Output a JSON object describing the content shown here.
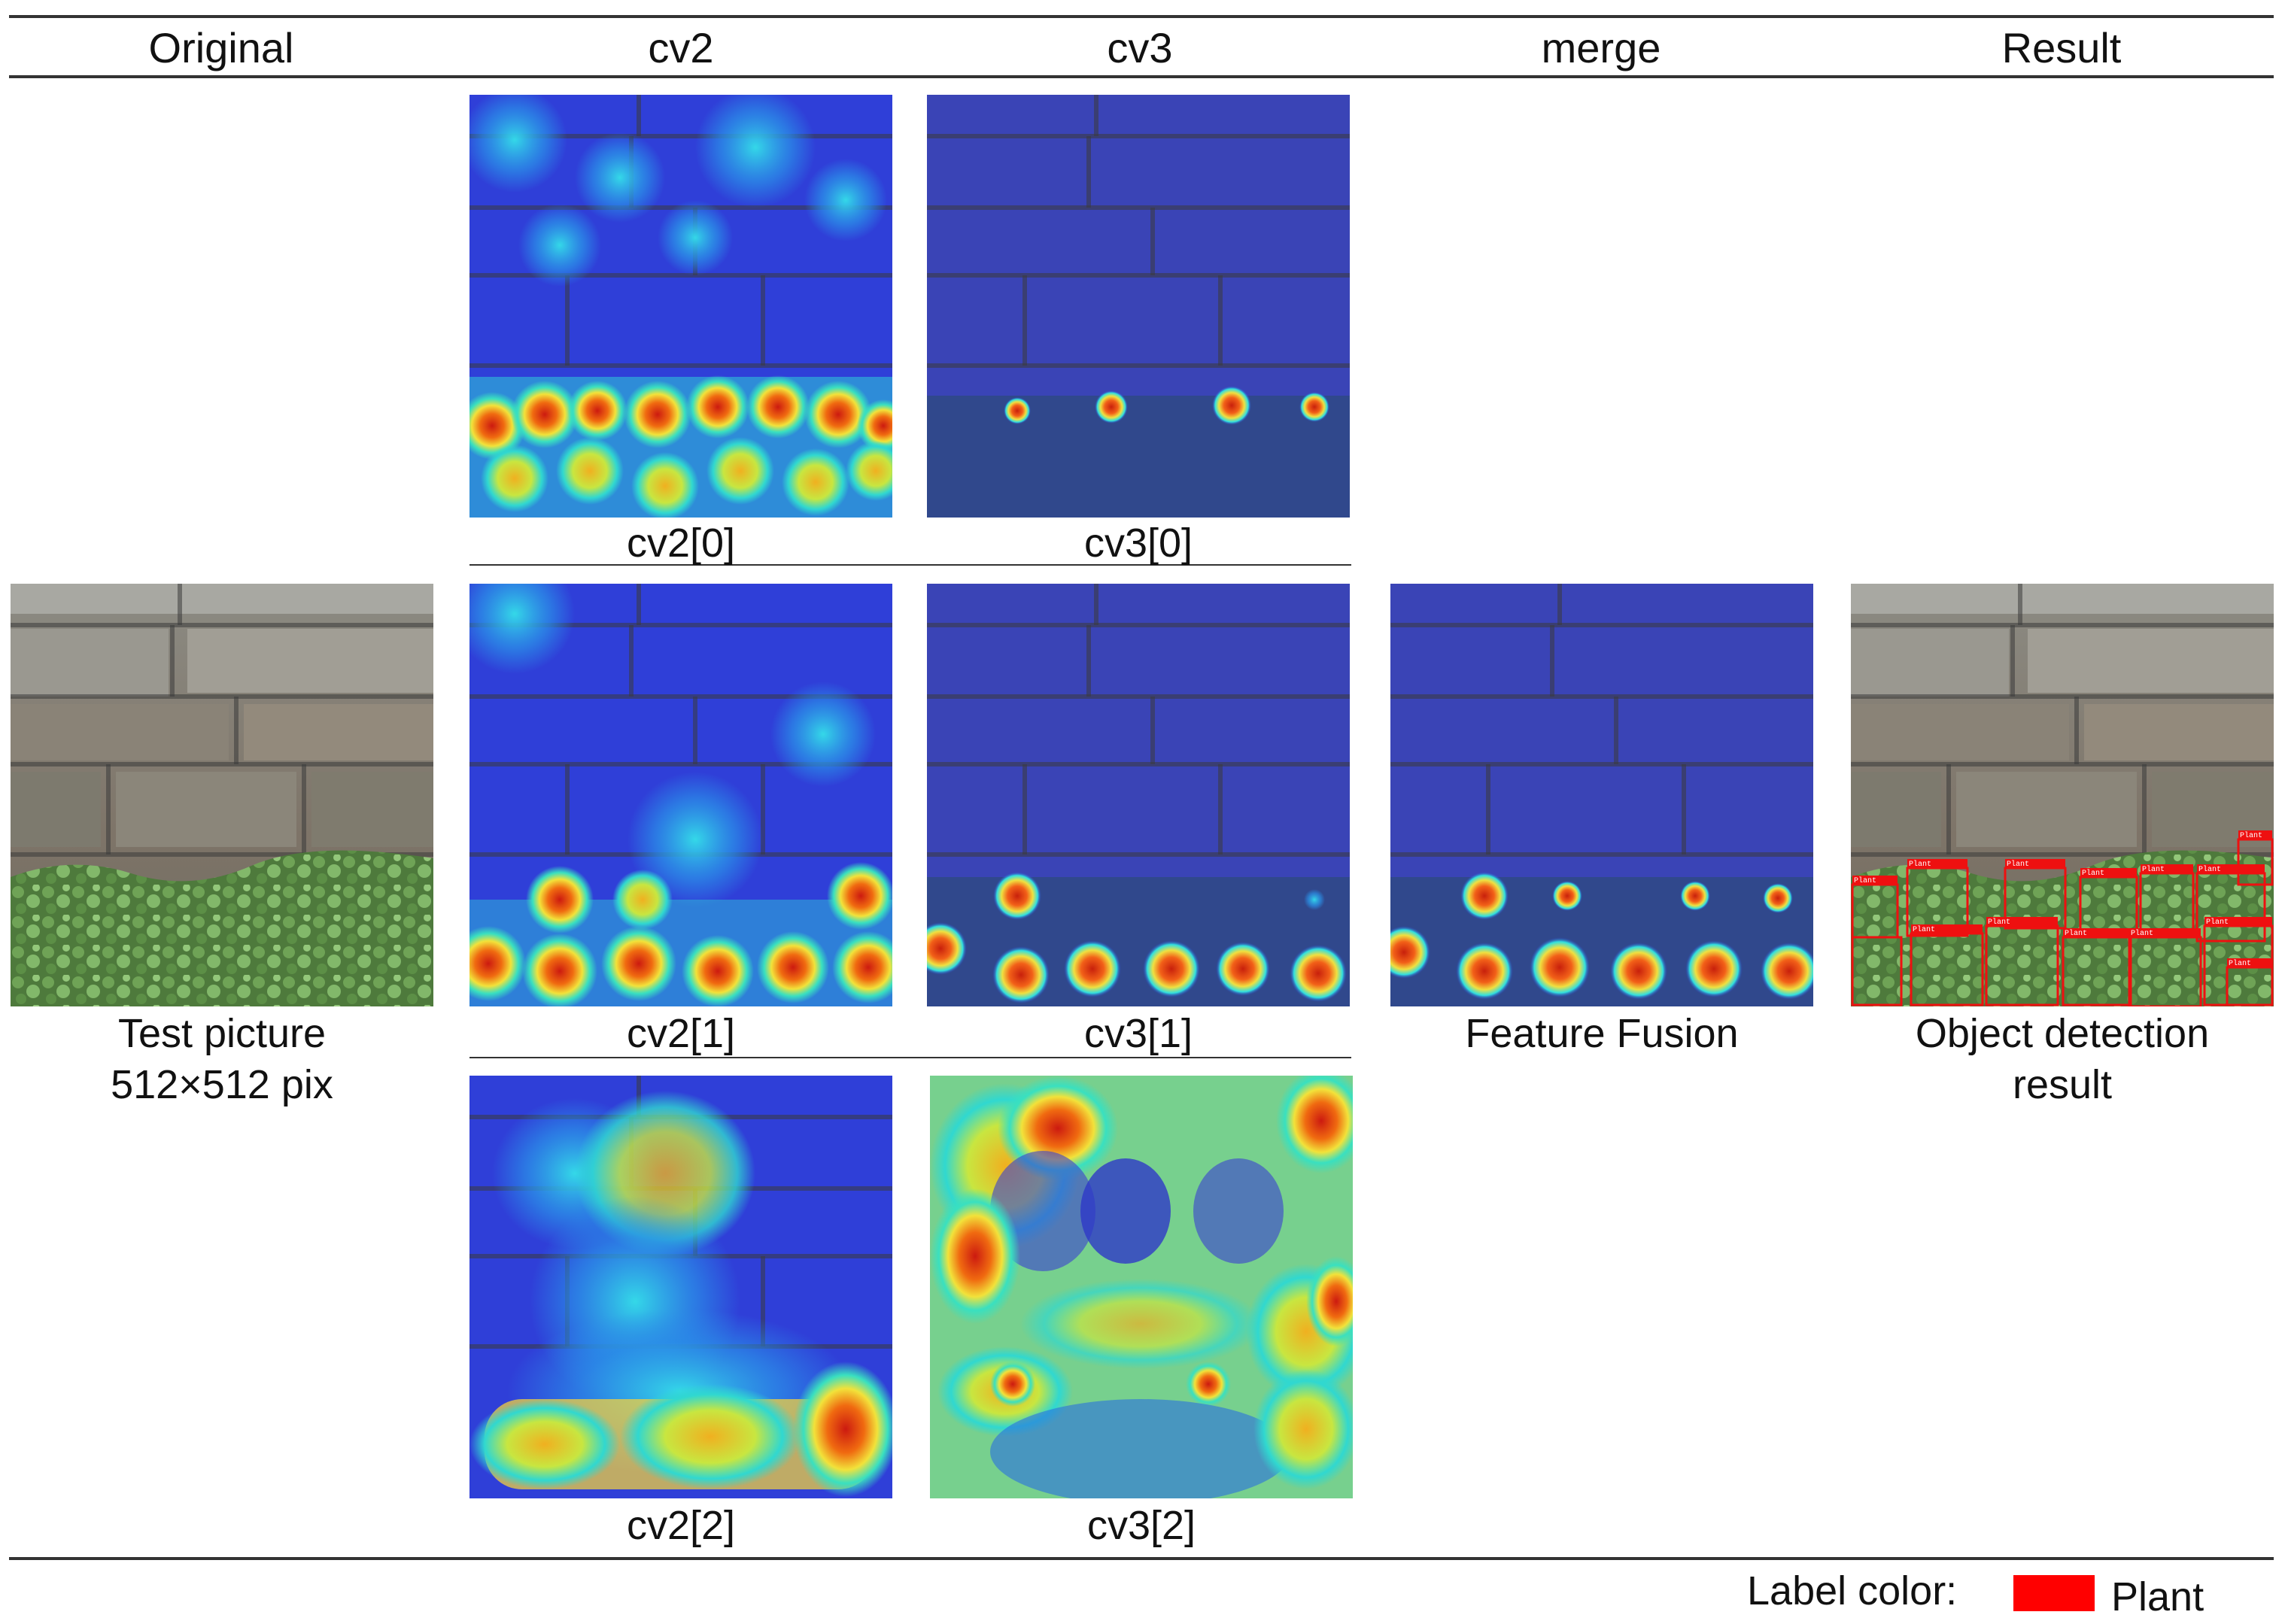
{
  "headers": {
    "original": "Original",
    "cv2": "cv2",
    "cv3": "cv3",
    "merge": "merge",
    "result": "Result"
  },
  "captions": {
    "test_picture_line1": "Test picture",
    "test_picture_line2": "512×512 pix",
    "cv2_0": "cv2[0]",
    "cv3_0": "cv3[0]",
    "cv2_1": "cv2[1]",
    "cv3_1": "cv3[1]",
    "cv2_2": "cv2[2]",
    "cv3_2": "cv3[2]",
    "feature_fusion": "Feature Fusion",
    "object_detection_line1": "Object detection",
    "object_detection_line2": "result"
  },
  "legend": {
    "label": "Label color:",
    "class_name": "Plant",
    "class_color": "#ff0000"
  },
  "detection_box_label": "Plant"
}
